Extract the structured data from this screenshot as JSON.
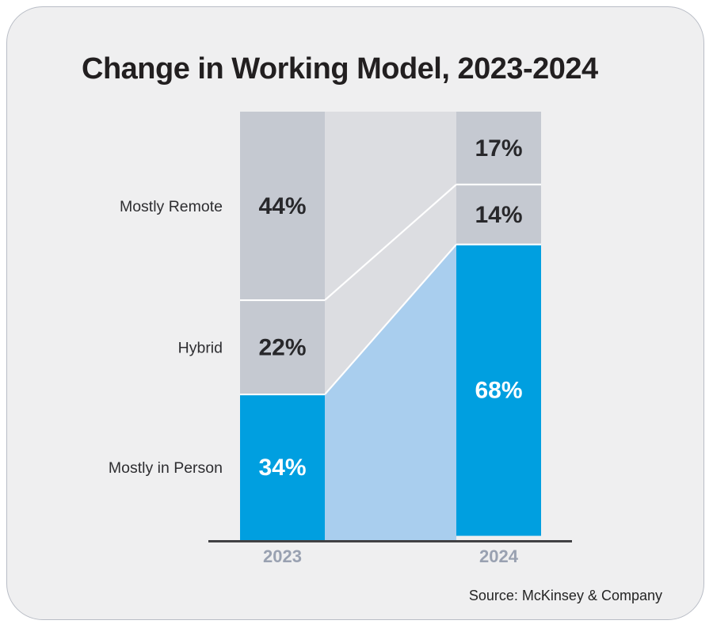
{
  "chart_data": {
    "type": "bar",
    "subtype": "stacked-bars-with-flow",
    "title": "Change in Working Model, 2023-2024",
    "categories": [
      "2023",
      "2024"
    ],
    "series": [
      {
        "name": "Mostly Remote",
        "values": [
          44,
          17
        ],
        "color": "#c5c9d1",
        "label_color": "#28282b"
      },
      {
        "name": "Hybrid",
        "values": [
          22,
          14
        ],
        "color": "#c5c9d1",
        "label_color": "#28282b"
      },
      {
        "name": "Mostly in Person",
        "values": [
          34,
          68
        ],
        "color": "#009fe0",
        "label_color": "#ffffff"
      }
    ],
    "value_suffix": "%",
    "ylim": [
      0,
      100
    ],
    "grid": false,
    "legend_position": "left-row-labels",
    "flows": {
      "gray_flow_color": "#dcdde1",
      "blue_flow_color": "#a9ceee"
    }
  },
  "footer": {
    "source": "Source: McKinsey & Company"
  },
  "style": {
    "card_background": "#efeff0",
    "card_border": "#b9bdc6",
    "axis_line_color": "#414144",
    "year_label_color": "#99a1b1",
    "category_label_color": "#2e2e31",
    "separator_color": "#ffffff",
    "title_color": "#221f20"
  }
}
